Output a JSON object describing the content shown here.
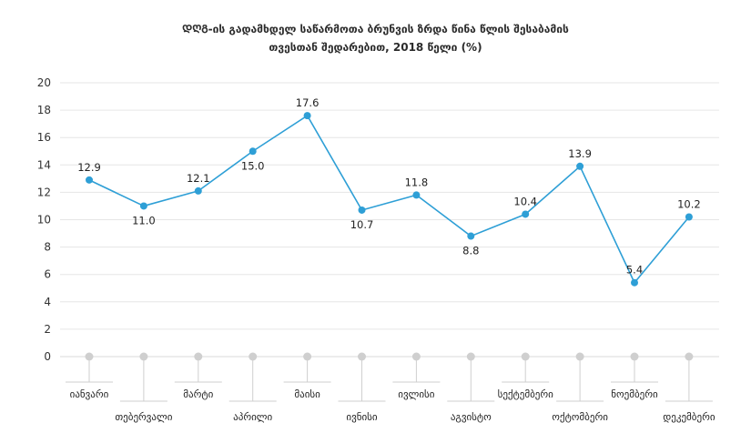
{
  "chart_data": {
    "type": "line",
    "title_line1": "ᲓᲦᲒ-ის გადამხდელ საწარმოთა ბრუნვის ზრდა წინა წლის შესაბამის",
    "title_line2": "თვესთან შედარებით, 2018 წელი (%)",
    "categories": [
      "იანვარი",
      "თებერვალი",
      "მარტი",
      "აპრილი",
      "მაისი",
      "ივნისი",
      "ივლისი",
      "აგვისტო",
      "სექტემბერი",
      "ოქტომბერი",
      "ნოემბერი",
      "დეკემბერი"
    ],
    "values": [
      12.9,
      11.0,
      12.1,
      15.0,
      17.6,
      10.7,
      11.8,
      8.8,
      10.4,
      13.9,
      5.4,
      10.2
    ],
    "value_labels": [
      "12.9",
      "11.0",
      "12.1",
      "15.0",
      "17.6",
      "10.7",
      "11.8",
      "8.8",
      "10.4",
      "13.9",
      "5.4",
      "10.2"
    ],
    "ylim": [
      0,
      20
    ],
    "yticks": [
      "0",
      "2",
      "4",
      "6",
      "8",
      "10",
      "12",
      "14",
      "16",
      "18",
      "20"
    ],
    "grid": true,
    "xlabel": "",
    "ylabel": "",
    "colors": {
      "line": "#2e9fd6",
      "grid": "#e6e6e6",
      "axis_marker": "#cfcfcf"
    }
  }
}
